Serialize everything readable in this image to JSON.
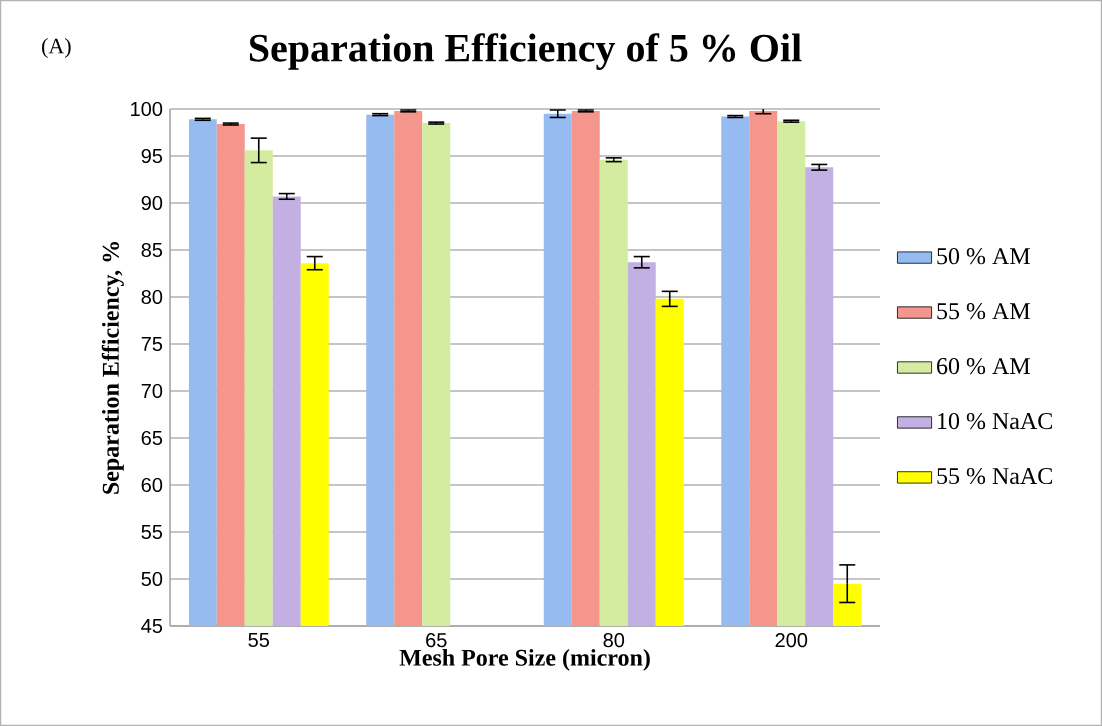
{
  "chart_data": {
    "type": "bar",
    "title": "Separation Efficiency of 5 % Oil",
    "xlabel": "Mesh Pore Size (micron)",
    "ylabel": "Separation Efficiency, %",
    "annotations": [
      "(A)"
    ],
    "categories": [
      "55",
      "65",
      "80",
      "200"
    ],
    "series": [
      {
        "name": "50 % AM",
        "color": "#95bbf0",
        "values": [
          98.9,
          99.4,
          99.5,
          99.2
        ],
        "errors": [
          0.1,
          0.1,
          0.4,
          0.1
        ]
      },
      {
        "name": "55 % AM",
        "color": "#f4968c",
        "values": [
          98.4,
          99.8,
          99.8,
          99.8
        ],
        "errors": [
          0.1,
          0.1,
          0.1,
          0.3
        ]
      },
      {
        "name": "60 % AM",
        "color": "#d4eca0",
        "values": [
          95.6,
          98.5,
          94.6,
          98.7
        ],
        "errors": [
          1.3,
          0.1,
          0.2,
          0.1
        ]
      },
      {
        "name": "10 % NaAC",
        "color": "#c3b0e2",
        "values": [
          90.7,
          null,
          83.7,
          93.8
        ],
        "errors": [
          0.3,
          null,
          0.6,
          0.3
        ]
      },
      {
        "name": "55 % NaAC",
        "color": "#ffff00",
        "values": [
          83.6,
          null,
          79.8,
          49.5
        ],
        "errors": [
          0.7,
          null,
          0.8,
          2.0
        ]
      }
    ],
    "ylim": [
      45,
      100
    ],
    "yticks": [
      45,
      50,
      55,
      60,
      65,
      70,
      75,
      80,
      85,
      90,
      95,
      100
    ],
    "grid": "y",
    "legend": "right"
  }
}
